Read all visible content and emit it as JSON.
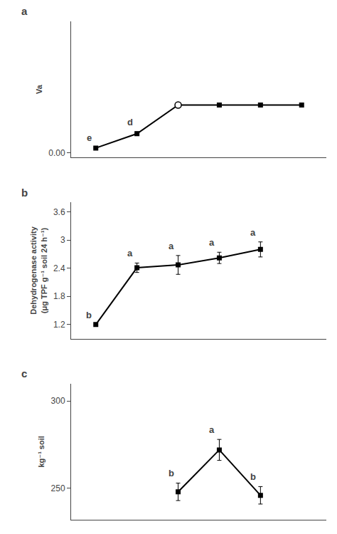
{
  "chart_data": [
    {
      "type": "line",
      "title": "a",
      "ylabel": "Va",
      "x": [
        1,
        2,
        3,
        4,
        5,
        6
      ],
      "series": [
        {
          "type": "line",
          "marker": "none",
          "color": "#000000",
          "values": [
            0.02,
            0.08,
            0.2,
            0.2,
            0.2,
            0.2
          ],
          "yerr": [
            0.003,
            0.008,
            0.0,
            0.0,
            0.0,
            0.0
          ]
        },
        {
          "type": "scatter",
          "marker": "square",
          "color": "#000000",
          "values": [
            0.02,
            0.08,
            null,
            0.2,
            0.2,
            0.2
          ]
        },
        {
          "type": "scatter",
          "marker": "circle-open",
          "color": "#000000",
          "values": [
            null,
            null,
            0.2,
            null,
            null,
            null
          ]
        }
      ],
      "annotations": [
        {
          "x": 1,
          "text": "e"
        },
        {
          "x": 2,
          "text": "d"
        }
      ],
      "xlim": [
        0.4,
        6.6
      ],
      "xticks": [],
      "ylim": [
        -0.02,
        0.55
      ],
      "yticks": [
        {
          "value": 0,
          "label": "0.00"
        }
      ],
      "grid": false,
      "tick_labels": "y"
    },
    {
      "type": "line",
      "title": "b",
      "ylabel": "Dehydrogenase activity\n(μg TPF g⁻¹ soil 24 h⁻¹)",
      "x": [
        1,
        2,
        3,
        4,
        5
      ],
      "series": [
        {
          "type": "line",
          "marker": "square",
          "color": "#000000",
          "values": [
            1.2,
            2.41,
            2.47,
            2.62,
            2.8
          ],
          "yerr": [
            0.0,
            0.1,
            0.2,
            0.12,
            0.16
          ]
        }
      ],
      "annotations": [
        {
          "x": 1,
          "text": "b"
        },
        {
          "x": 2,
          "text": "a"
        },
        {
          "x": 3,
          "text": "a"
        },
        {
          "x": 4,
          "text": "a"
        },
        {
          "x": 5,
          "text": "a"
        }
      ],
      "xlim": [
        0.4,
        6.6
      ],
      "xticks": [],
      "ylim": [
        0.9,
        3.8
      ],
      "yticks": [
        1.2,
        1.8,
        2.4,
        3.0,
        3.6
      ],
      "grid": false,
      "tick_labels": "y"
    },
    {
      "type": "line",
      "title": "c",
      "ylabel": "kg⁻¹ soil",
      "x": [
        3,
        4,
        5
      ],
      "series": [
        {
          "type": "line",
          "marker": "square",
          "color": "#000000",
          "values": [
            248,
            272,
            246
          ],
          "yerr": [
            5,
            6,
            5
          ]
        }
      ],
      "annotations": [
        {
          "x": 3,
          "text": "b"
        },
        {
          "x": 4,
          "text": "a"
        },
        {
          "x": 5,
          "text": "b"
        }
      ],
      "xlim": [
        0.4,
        6.6
      ],
      "xticks": [],
      "ylim": [
        232,
        310
      ],
      "yticks": [
        250,
        300
      ],
      "grid": false,
      "tick_labels": "y"
    }
  ]
}
